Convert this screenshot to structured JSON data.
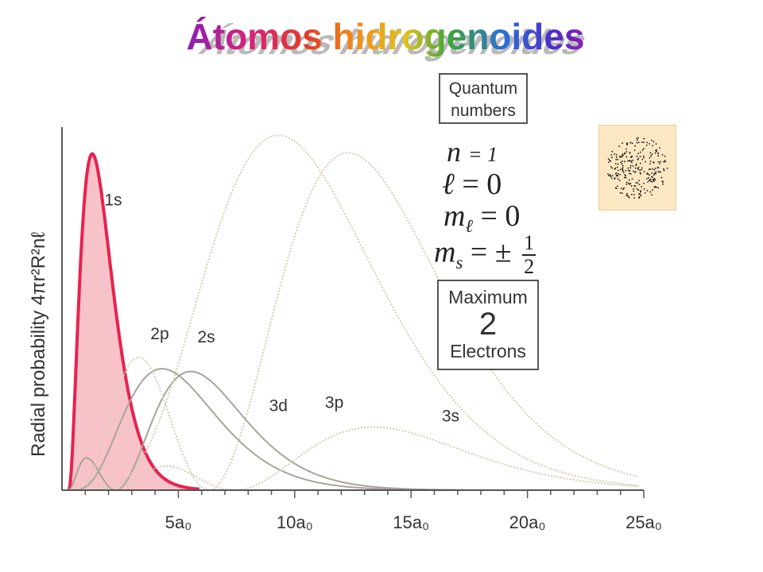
{
  "title": "Átomos hidrogenoides",
  "quantum_box": {
    "line1": "Quantum",
    "line2": "numbers"
  },
  "quantum_numbers": {
    "n": {
      "symbol": "n",
      "value": "= 1"
    },
    "l": {
      "symbol": "ℓ",
      "value": " = 0"
    },
    "ml": {
      "symbol": "m",
      "sub": "ℓ",
      "value": " = 0"
    },
    "ms": {
      "symbol": "m",
      "sub": "s",
      "value": " = ± ",
      "num": "1",
      "den": "2"
    }
  },
  "max_box": {
    "line1": "Maximum",
    "line2": "2",
    "line3": "Electrons"
  },
  "orbital_image": {
    "name": "1s-electron-cloud",
    "background": "#fbe7c2",
    "dot_color": "#111111"
  },
  "chart_data": {
    "type": "line",
    "ylabel": "Radial probability 4πr²R²nℓ",
    "xlabel": "",
    "xlim": [
      0,
      25
    ],
    "x_ticks": [
      {
        "value": 5,
        "label": "5a₀"
      },
      {
        "value": 10,
        "label": "10a₀"
      },
      {
        "value": 15,
        "label": "15a₀"
      },
      {
        "value": 20,
        "label": "20a₀"
      },
      {
        "value": 25,
        "label": "25a₀"
      }
    ],
    "ylim": [
      0,
      1.0
    ],
    "grid": false,
    "highlight_color": "#e8224f",
    "highlight_fill": "#f7c3c9",
    "series": [
      {
        "name": "1s",
        "n": 1,
        "l": 0,
        "style": "highlight",
        "label_x": 2.2,
        "label_y": 0.83
      },
      {
        "name": "2s",
        "n": 2,
        "l": 0,
        "style": "solid",
        "label_x": 6.2,
        "label_y": 0.43
      },
      {
        "name": "2p",
        "n": 2,
        "l": 1,
        "style": "solid",
        "label_x": 4.2,
        "label_y": 0.44
      },
      {
        "name": "3s",
        "n": 3,
        "l": 0,
        "style": "dotted",
        "label_x": 16.7,
        "label_y": 0.2
      },
      {
        "name": "3p",
        "n": 3,
        "l": 1,
        "style": "dotted",
        "label_x": 11.7,
        "label_y": 0.24
      },
      {
        "name": "3d",
        "n": 3,
        "l": 2,
        "style": "dotted",
        "label_x": 9.3,
        "label_y": 0.23
      }
    ]
  }
}
